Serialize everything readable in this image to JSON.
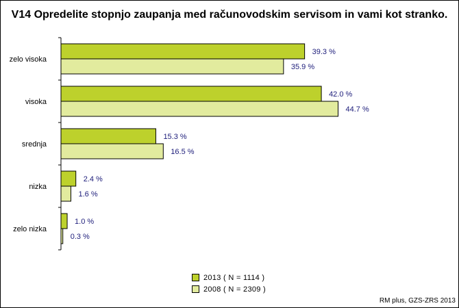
{
  "chart_data": {
    "type": "bar",
    "orientation": "horizontal",
    "title": "V14 Opredelite stopnjo zaupanja med računovodskim servisom in vami kot stranko.",
    "categories": [
      "zelo visoka",
      "visoka",
      "srednja",
      "nizka",
      "zelo nizka"
    ],
    "series": [
      {
        "name": "2013 ( N = 1114 )",
        "values": [
          39.3,
          42.0,
          15.3,
          2.4,
          1.0
        ],
        "labels": [
          "39.3 %",
          "42.0 %",
          "15.3 %",
          "2.4 %",
          "1.0 %"
        ],
        "color": "#bdd12c"
      },
      {
        "name": "2008 ( N = 2309 )",
        "values": [
          35.9,
          44.7,
          16.5,
          1.6,
          0.3
        ],
        "labels": [
          "35.9 %",
          "44.7 %",
          "16.5 %",
          "1.6 %",
          "0.3 %"
        ],
        "color": "#e2eb9e"
      }
    ],
    "xlim": [
      0,
      60
    ],
    "grid": false,
    "legend_position": "bottom-center",
    "label_color": "#1c1c7a"
  },
  "source": "RM plus, GZS-ZRS 2013"
}
